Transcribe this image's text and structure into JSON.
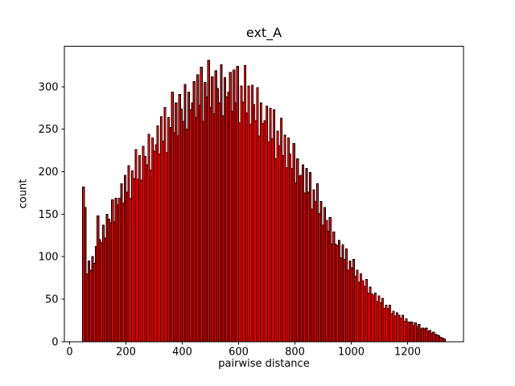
{
  "chart_data": {
    "type": "bar",
    "title": "ext_A",
    "xlabel": "pairwise distance",
    "ylabel": "count",
    "bar_color": "#ff0000",
    "edge_color": "#000000",
    "background_color": "#ffffff",
    "grid": false,
    "legend": "none",
    "bin_start": 46,
    "bin_width": 6.44,
    "n_bins": 200,
    "xlim": [
      -18.6,
      1398.6
    ],
    "ylim": [
      0,
      347.6
    ],
    "x_ticks": [
      0,
      200,
      400,
      600,
      800,
      1000,
      1200
    ],
    "y_ticks": [
      0,
      50,
      100,
      150,
      200,
      250,
      300
    ],
    "counts": [
      182,
      158,
      80,
      95,
      84,
      100,
      92,
      112,
      148,
      120,
      117,
      137,
      122,
      150,
      144,
      140,
      167,
      141,
      169,
      161,
      169,
      186,
      163,
      196,
      176,
      207,
      169,
      201,
      192,
      226,
      191,
      219,
      190,
      230,
      218,
      208,
      244,
      202,
      240,
      224,
      232,
      254,
      221,
      265,
      236,
      276,
      223,
      264,
      252,
      294,
      246,
      281,
      242,
      291,
      274,
      259,
      303,
      250,
      294,
      273,
      281,
      306,
      264,
      314,
      278,
      323,
      259,
      305,
      288,
      331,
      276,
      312,
      268,
      319,
      298,
      281,
      326,
      266,
      311,
      288,
      294,
      317,
      271,
      320,
      281,
      324,
      258,
      301,
      282,
      325,
      269,
      301,
      256,
      302,
      279,
      260,
      299,
      242,
      281,
      257,
      260,
      277,
      235,
      275,
      239,
      273,
      215,
      248,
      231,
      263,
      219,
      243,
      205,
      240,
      221,
      204,
      233,
      187,
      215,
      195,
      196,
      208,
      175,
      204,
      176,
      199,
      156,
      179,
      165,
      186,
      151,
      165,
      137,
      158,
      143,
      130,
      146,
      115,
      129,
      115,
      113,
      119,
      99,
      114,
      97,
      109,
      84,
      95,
      87,
      97,
      77,
      84,
      70,
      80,
      72,
      65,
      73,
      57,
      64,
      56,
      55,
      57,
      47,
      54,
      46,
      51,
      39,
      43,
      39,
      43,
      33,
      36,
      30,
      34,
      31,
      28,
      31,
      24,
      27,
      23,
      23,
      23,
      19,
      22,
      18,
      20,
      15,
      16,
      15,
      16,
      12,
      13,
      10,
      11,
      9,
      8,
      7,
      5,
      4,
      3
    ]
  }
}
